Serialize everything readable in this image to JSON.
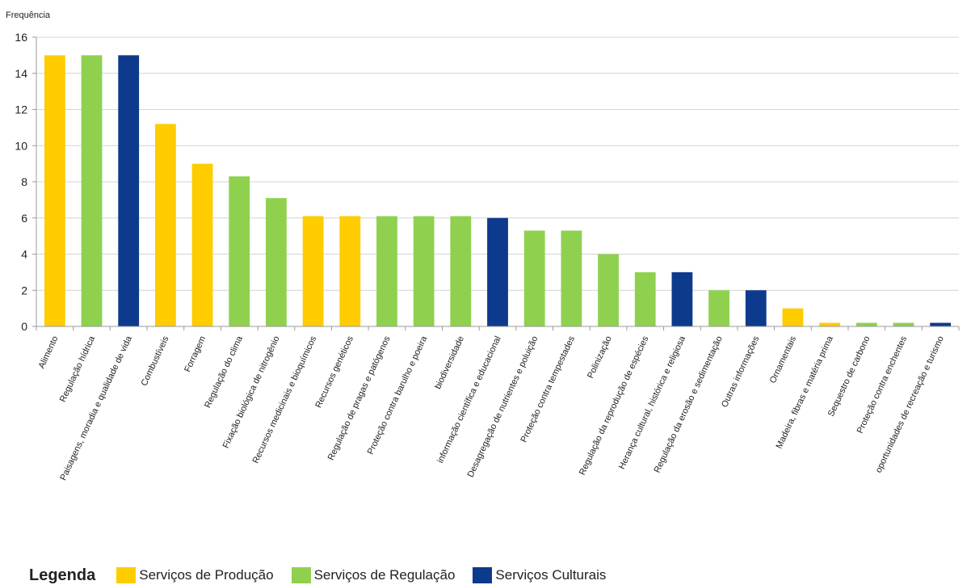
{
  "chart_data": {
    "type": "bar",
    "ylabel": "Frequência",
    "ylim": [
      0,
      16
    ],
    "yticks": [
      0,
      2,
      4,
      6,
      8,
      10,
      12,
      14,
      16
    ],
    "grid": true,
    "categories": [
      "Alimento",
      "Regulação hídrica",
      "Paisagens, moradia e qualidade de vida",
      "Combustíveis",
      "Forragem",
      "Regulação do clima",
      "Fixação biológica de nitrogênio",
      "Recursos medicinais e bioquímicos",
      "Recursos genéticos",
      "Regulação de pragas e patógenos",
      "Proteção contra barulho e poeira",
      "biodiversidade",
      "informação científica e educacional",
      "Desagregação de nutrientes  e poluição",
      "Proteção contra tempestades",
      "Polinização",
      "Regulação da reprodução de espécies",
      "Herança cultural, histórica e religiosa",
      "Regulação da erosão e sedimentação",
      "Outras informações",
      "Ornamentais",
      "Madeira, fibras e matéria prima",
      "Sequestro de carbono",
      "Proteção contra enchentes",
      "oportunidades de recreação e turismo"
    ],
    "values": [
      15,
      15,
      15,
      11.2,
      9,
      8.3,
      7.1,
      6.1,
      6.1,
      6.1,
      6.1,
      6.1,
      6,
      5.3,
      5.3,
      4,
      3,
      3,
      2,
      2,
      1,
      0.2,
      0.2,
      0.2,
      0.2
    ],
    "groups": [
      "producao",
      "regulacao",
      "cultural",
      "producao",
      "producao",
      "regulacao",
      "regulacao",
      "producao",
      "producao",
      "regulacao",
      "regulacao",
      "regulacao",
      "cultural",
      "regulacao",
      "regulacao",
      "regulacao",
      "regulacao",
      "cultural",
      "regulacao",
      "cultural",
      "producao",
      "producao",
      "regulacao",
      "regulacao",
      "cultural"
    ],
    "colors": {
      "producao": "#ffcc00",
      "regulacao": "#8fd14f",
      "cultural": "#0d3a8c"
    }
  },
  "legend": {
    "title": "Legenda",
    "placement": "bottom-left",
    "items": [
      {
        "label": "Serviços de Produção",
        "color": "#ffcc00"
      },
      {
        "label": "Serviços de Regulação",
        "color": "#8fd14f"
      },
      {
        "label": "Serviços Culturais",
        "color": "#0d3a8c"
      }
    ]
  }
}
